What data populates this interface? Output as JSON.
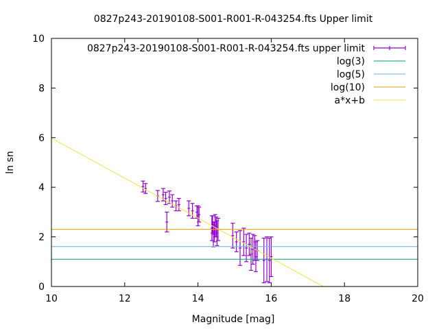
{
  "chart_data": {
    "type": "scatter",
    "title": "0827p243-20190108-S001-R001-R-043254.fts Upper limit",
    "xlabel": "Magnitude [mag]",
    "ylabel": "ln sn",
    "xlim": [
      10,
      20
    ],
    "ylim": [
      0,
      10
    ],
    "xticks": [
      10,
      12,
      14,
      16,
      18,
      20
    ],
    "yticks": [
      0,
      2,
      4,
      6,
      8,
      10
    ],
    "grid": false,
    "legend_position": "top-right",
    "series": [
      {
        "name": "0827p243-20190108-S001-R001-R-043254.fts upper limit",
        "kind": "errorbars",
        "color": "#9400d3",
        "points": [
          {
            "x": 12.5,
            "y": 4.03,
            "err": 0.22
          },
          {
            "x": 12.57,
            "y": 3.95,
            "err": 0.2
          },
          {
            "x": 12.9,
            "y": 3.65,
            "err": 0.22
          },
          {
            "x": 13.05,
            "y": 3.7,
            "err": 0.25
          },
          {
            "x": 13.12,
            "y": 3.55,
            "err": 0.25
          },
          {
            "x": 13.15,
            "y": 2.6,
            "err": 0.4
          },
          {
            "x": 13.22,
            "y": 3.6,
            "err": 0.25
          },
          {
            "x": 13.3,
            "y": 3.45,
            "err": 0.25
          },
          {
            "x": 13.4,
            "y": 3.25,
            "err": 0.2
          },
          {
            "x": 13.48,
            "y": 3.3,
            "err": 0.25
          },
          {
            "x": 13.75,
            "y": 3.15,
            "err": 0.3
          },
          {
            "x": 13.85,
            "y": 3.05,
            "err": 0.3
          },
          {
            "x": 13.97,
            "y": 3.0,
            "err": 0.25
          },
          {
            "x": 14.0,
            "y": 2.85,
            "err": 0.4
          },
          {
            "x": 14.03,
            "y": 2.9,
            "err": 0.3
          },
          {
            "x": 14.38,
            "y": 2.35,
            "err": 0.5
          },
          {
            "x": 14.4,
            "y": 2.5,
            "err": 0.35
          },
          {
            "x": 14.42,
            "y": 2.1,
            "err": 0.5
          },
          {
            "x": 14.45,
            "y": 2.2,
            "err": 0.4
          },
          {
            "x": 14.47,
            "y": 2.45,
            "err": 0.45
          },
          {
            "x": 14.5,
            "y": 2.4,
            "err": 0.4
          },
          {
            "x": 14.52,
            "y": 2.15,
            "err": 0.5
          },
          {
            "x": 14.55,
            "y": 2.3,
            "err": 0.45
          },
          {
            "x": 14.95,
            "y": 2.05,
            "err": 0.5
          },
          {
            "x": 15.05,
            "y": 1.8,
            "err": 0.4
          },
          {
            "x": 15.15,
            "y": 1.55,
            "err": 0.7
          },
          {
            "x": 15.25,
            "y": 1.8,
            "err": 0.55
          },
          {
            "x": 15.32,
            "y": 1.55,
            "err": 0.55
          },
          {
            "x": 15.4,
            "y": 1.7,
            "err": 0.45
          },
          {
            "x": 15.45,
            "y": 1.3,
            "err": 0.65
          },
          {
            "x": 15.5,
            "y": 1.5,
            "err": 0.6
          },
          {
            "x": 15.55,
            "y": 1.55,
            "err": 0.5
          },
          {
            "x": 15.58,
            "y": 1.2,
            "err": 0.6
          },
          {
            "x": 15.62,
            "y": 1.45,
            "err": 0.4
          },
          {
            "x": 15.8,
            "y": 1.05,
            "err": 0.9
          },
          {
            "x": 15.88,
            "y": 1.1,
            "err": 0.9
          },
          {
            "x": 15.95,
            "y": 1.05,
            "err": 0.9
          },
          {
            "x": 16.0,
            "y": 1.2,
            "err": 0.8
          }
        ]
      },
      {
        "name": "log(3)",
        "kind": "hline",
        "y": 1.0986,
        "color": "#009e73"
      },
      {
        "name": "log(5)",
        "kind": "hline",
        "y": 1.6094,
        "color": "#56b4e9"
      },
      {
        "name": "log(10)",
        "kind": "hline",
        "y": 2.3026,
        "color": "#e69f00"
      },
      {
        "name": "a*x+b",
        "kind": "line",
        "color": "#f0e442",
        "x": [
          10,
          17.42
        ],
        "y": [
          5.98,
          0
        ]
      }
    ]
  }
}
